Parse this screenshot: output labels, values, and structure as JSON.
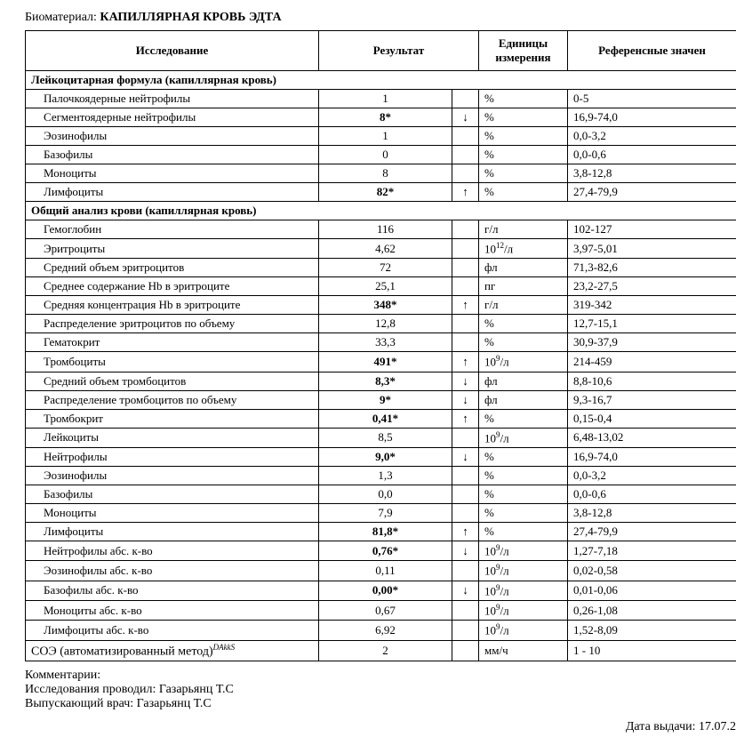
{
  "biomaterial": {
    "label": "Биоматериал:",
    "value": "КАПИЛЛЯРНАЯ КРОВЬ ЭДТА"
  },
  "headers": {
    "name": "Исследование",
    "result": "Результат",
    "unit_l1": "Единицы",
    "unit_l2": "измерения",
    "ref": "Референсные значен"
  },
  "sections": [
    {
      "title": "Лейкоцитарная формула (капиллярная кровь)",
      "rows": [
        {
          "name": "Палочкоядерные нейтрофилы",
          "result": "1",
          "arrow": "",
          "unit": "%",
          "ref": "0-5",
          "bold": false
        },
        {
          "name": "Сегментоядерные нейтрофилы",
          "result": "8*",
          "arrow": "↓",
          "unit": "%",
          "ref": "16,9-74,0",
          "bold": true
        },
        {
          "name": "Эозинофилы",
          "result": "1",
          "arrow": "",
          "unit": "%",
          "ref": "0,0-3,2",
          "bold": false
        },
        {
          "name": "Базофилы",
          "result": "0",
          "arrow": "",
          "unit": "%",
          "ref": "0,0-0,6",
          "bold": false
        },
        {
          "name": "Моноциты",
          "result": "8",
          "arrow": "",
          "unit": "%",
          "ref": "3,8-12,8",
          "bold": false
        },
        {
          "name": "Лимфоциты",
          "result": "82*",
          "arrow": "↑",
          "unit": "%",
          "ref": "27,4-79,9",
          "bold": true
        }
      ]
    },
    {
      "title": "Общий анализ крови (капиллярная кровь)",
      "rows": [
        {
          "name": "Гемоглобин",
          "result": "116",
          "arrow": "",
          "unit": "г/л",
          "ref": "102-127",
          "bold": false
        },
        {
          "name": "Эритроциты",
          "result": "4,62",
          "arrow": "",
          "unit": "10^12/л",
          "ref": "3,97-5,01",
          "bold": false
        },
        {
          "name": "Средний объем эритроцитов",
          "result": "72",
          "arrow": "",
          "unit": "фл",
          "ref": "71,3-82,6",
          "bold": false
        },
        {
          "name": "Среднее содержание Hb в эритроците",
          "result": "25,1",
          "arrow": "",
          "unit": "пг",
          "ref": "23,2-27,5",
          "bold": false
        },
        {
          "name": "Средняя концентрация Hb в эритроците",
          "result": "348*",
          "arrow": "↑",
          "unit": "г/л",
          "ref": "319-342",
          "bold": true
        },
        {
          "name": "Распределение эритроцитов по объему",
          "result": "12,8",
          "arrow": "",
          "unit": "%",
          "ref": "12,7-15,1",
          "bold": false
        },
        {
          "name": "Гематокрит",
          "result": "33,3",
          "arrow": "",
          "unit": "%",
          "ref": "30,9-37,9",
          "bold": false
        },
        {
          "name": "Тромбоциты",
          "result": "491*",
          "arrow": "↑",
          "unit": "10^9/л",
          "ref": "214-459",
          "bold": true
        },
        {
          "name": "Средний объем тромбоцитов",
          "result": "8,3*",
          "arrow": "↓",
          "unit": "фл",
          "ref": "8,8-10,6",
          "bold": true
        },
        {
          "name": "Распределение тромбоцитов по объему",
          "result": "9*",
          "arrow": "↓",
          "unit": "фл",
          "ref": "9,3-16,7",
          "bold": true
        },
        {
          "name": "Тромбокрит",
          "result": "0,41*",
          "arrow": "↑",
          "unit": "%",
          "ref": "0,15-0,4",
          "bold": true
        },
        {
          "name": "Лейкоциты",
          "result": "8,5",
          "arrow": "",
          "unit": "10^9/л",
          "ref": "6,48-13,02",
          "bold": false
        },
        {
          "name": "Нейтрофилы",
          "result": "9,0*",
          "arrow": "↓",
          "unit": "%",
          "ref": "16,9-74,0",
          "bold": true
        },
        {
          "name": "Эозинофилы",
          "result": "1,3",
          "arrow": "",
          "unit": "%",
          "ref": "0,0-3,2",
          "bold": false
        },
        {
          "name": "Базофилы",
          "result": "0,0",
          "arrow": "",
          "unit": "%",
          "ref": "0,0-0,6",
          "bold": false
        },
        {
          "name": "Моноциты",
          "result": "7,9",
          "arrow": "",
          "unit": "%",
          "ref": "3,8-12,8",
          "bold": false
        },
        {
          "name": "Лимфоциты",
          "result": "81,8*",
          "arrow": "↑",
          "unit": "%",
          "ref": "27,4-79,9",
          "bold": true
        },
        {
          "name": "Нейтрофилы абс. к-во",
          "result": "0,76*",
          "arrow": "↓",
          "unit": "10^9/л",
          "ref": "1,27-7,18",
          "bold": true
        },
        {
          "name": "Эозинофилы абс. к-во",
          "result": "0,11",
          "arrow": "",
          "unit": "10^9/л",
          "ref": "0,02-0,58",
          "bold": false
        },
        {
          "name": "Базофилы абс. к-во",
          "result": "0,00*",
          "arrow": "↓",
          "unit": "10^9/л",
          "ref": "0,01-0,06",
          "bold": true
        },
        {
          "name": "Моноциты абс. к-во",
          "result": "0,67",
          "arrow": "",
          "unit": "10^9/л",
          "ref": "0,26-1,08",
          "bold": false
        },
        {
          "name": "Лимфоциты абс. к-во",
          "result": "6,92",
          "arrow": "",
          "unit": "10^9/л",
          "ref": "1,52-8,09",
          "bold": false
        }
      ]
    }
  ],
  "soe": {
    "name": "СОЭ (автоматизированный метод)",
    "suffix": "DAkkS",
    "result": "2",
    "unit": "мм/ч",
    "ref": "1 - 10"
  },
  "footer": {
    "comments": "Комментарии:",
    "performed": "Исследования проводил: Газарьянц Т.С",
    "released": "Выпускающий врач: Газарьянц Т.С",
    "issue_date": "Дата выдачи: 17.07.2"
  }
}
